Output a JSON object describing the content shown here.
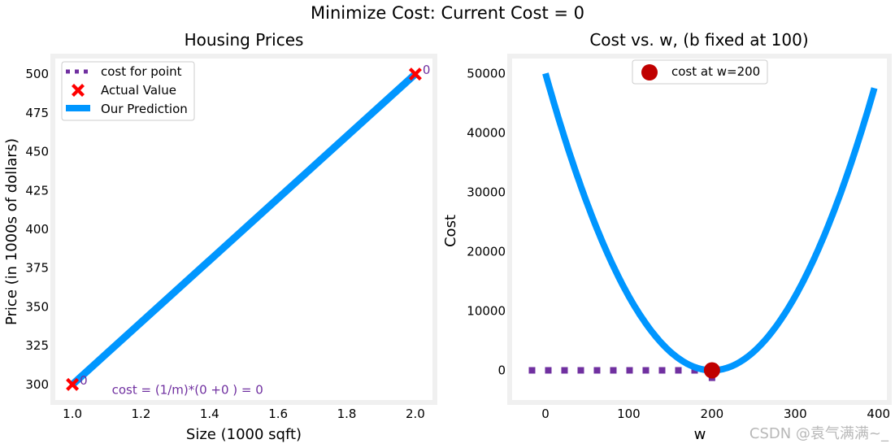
{
  "suptitle": "Minimize Cost: Current Cost = 0",
  "watermark": "CSDN @袁气满满~_",
  "chart_data": [
    {
      "type": "line",
      "title": "Housing Prices",
      "xlabel": "Size (1000 sqft)",
      "ylabel": "Price (in 1000s of dollars)",
      "xlim": [
        0.95,
        2.05
      ],
      "ylim": [
        290,
        510
      ],
      "xticks": [
        1.0,
        1.2,
        1.4,
        1.6,
        1.8,
        2.0
      ],
      "xtick_labels": [
        "1.0",
        "1.2",
        "1.4",
        "1.6",
        "1.8",
        "2.0"
      ],
      "yticks": [
        300,
        325,
        350,
        375,
        400,
        425,
        450,
        475,
        500
      ],
      "ytick_labels": [
        "300",
        "325",
        "350",
        "375",
        "400",
        "425",
        "450",
        "475",
        "500"
      ],
      "grid": false,
      "legend_position": "top-left",
      "series": [
        {
          "name": "cost for point",
          "type": "dotted-line",
          "color": "#7030A0",
          "x": [],
          "y": []
        },
        {
          "name": "Actual Value",
          "type": "scatter",
          "marker": "X",
          "color": "#FF0000",
          "x": [
            1.0,
            2.0
          ],
          "y": [
            300,
            500
          ]
        },
        {
          "name": "Our Prediction",
          "type": "line",
          "color": "#0096FF",
          "x": [
            1.0,
            2.0
          ],
          "y": [
            300,
            500
          ]
        }
      ],
      "point_labels": [
        {
          "x": 1.0,
          "y": 300,
          "text": "0"
        },
        {
          "x": 2.0,
          "y": 500,
          "text": "0"
        }
      ],
      "annotation": "cost = (1/m)*(0 +0 ) = 0",
      "annotation_color": "#7030A0"
    },
    {
      "type": "line",
      "title": "Cost vs. w, (b fixed at 100)",
      "xlabel": "w",
      "ylabel": "Cost",
      "xlim": [
        -40,
        410
      ],
      "ylim": [
        -5000,
        52500
      ],
      "xticks": [
        0,
        100,
        200,
        300,
        400
      ],
      "xtick_labels": [
        "0",
        "100",
        "200",
        "300",
        "400"
      ],
      "yticks": [
        0,
        10000,
        20000,
        30000,
        40000,
        50000
      ],
      "ytick_labels": [
        "0",
        "10000",
        "20000",
        "30000",
        "40000",
        "50000"
      ],
      "grid": false,
      "legend_position": "top-center",
      "series": [
        {
          "name": "",
          "type": "line",
          "color": "#0096FF",
          "equation": "cost = 1.25*(w-200)^2",
          "x_range": [
            0,
            395
          ]
        },
        {
          "name": "cost at w=200",
          "type": "scatter",
          "marker": "circle",
          "color": "#C00000",
          "x": [
            200
          ],
          "y": [
            0
          ]
        },
        {
          "name": "",
          "type": "dotted-line",
          "color": "#7030A0",
          "x": [
            -20,
            200
          ],
          "y": [
            0,
            0
          ]
        },
        {
          "name": "",
          "type": "dotted-line",
          "color": "#7030A0",
          "x": [
            200,
            200
          ],
          "y": [
            0,
            -1800
          ]
        }
      ]
    }
  ]
}
